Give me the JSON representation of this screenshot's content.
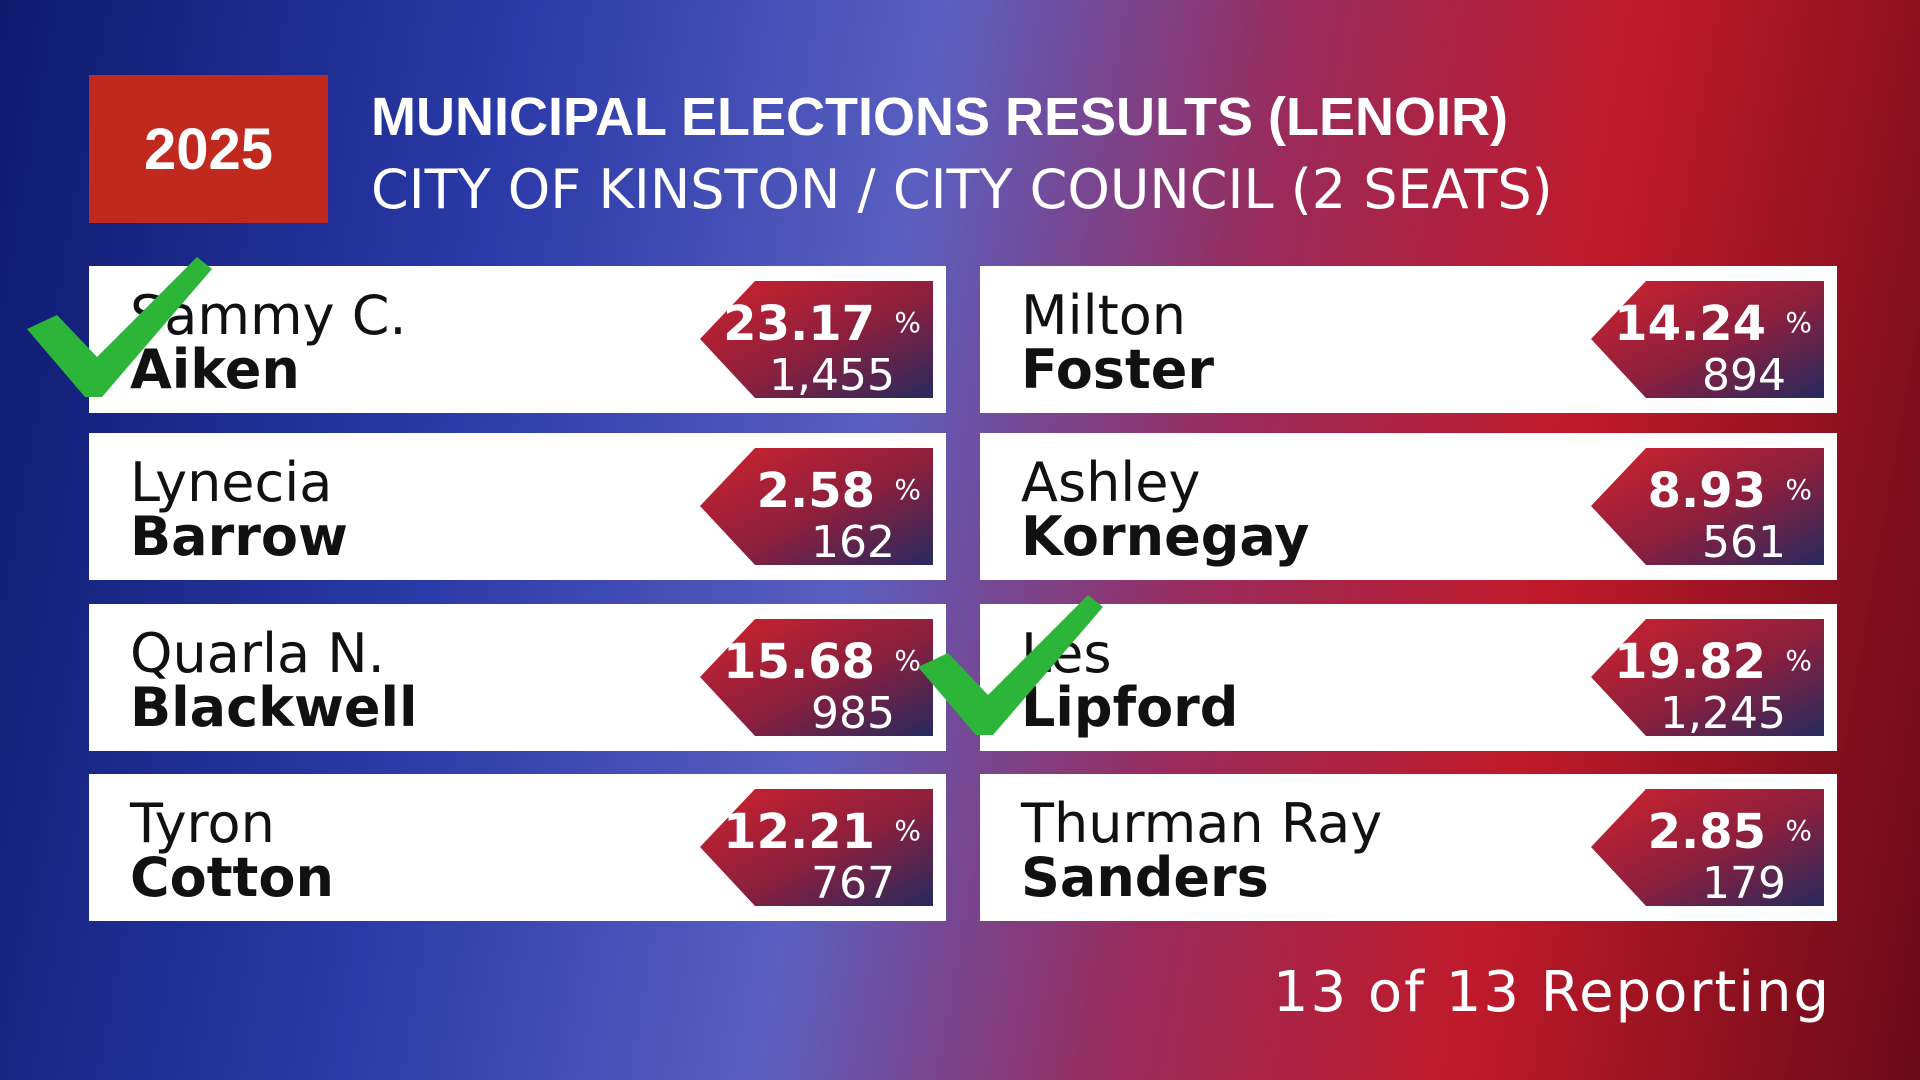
{
  "header": {
    "year": "2025",
    "title": "MUNICIPAL ELECTIONS RESULTS (LENOIR)",
    "subtitle": "CITY OF KINSTON / CITY COUNCIL (2 SEATS)"
  },
  "percent_sign": "%",
  "candidates": [
    {
      "first": "Sammy C.",
      "last": "Aiken",
      "percent": "23.17",
      "votes": "1,455",
      "winner": true
    },
    {
      "first": "Lynecia",
      "last": "Barrow",
      "percent": "2.58",
      "votes": "162",
      "winner": false
    },
    {
      "first": "Quarla N.",
      "last": "Blackwell",
      "percent": "15.68",
      "votes": "985",
      "winner": false
    },
    {
      "first": "Tyron",
      "last": "Cotton",
      "percent": "12.21",
      "votes": "767",
      "winner": false
    },
    {
      "first": "Milton",
      "last": "Foster",
      "percent": "14.24",
      "votes": "894",
      "winner": false
    },
    {
      "first": "Ashley",
      "last": "Kornegay",
      "percent": "8.93",
      "votes": "561",
      "winner": false
    },
    {
      "first": "Les",
      "last": "Lipford",
      "percent": "19.82",
      "votes": "1,245",
      "winner": true
    },
    {
      "first": "Thurman Ray",
      "last": "Sanders",
      "percent": "2.85",
      "votes": "179",
      "winner": false
    }
  ],
  "footer": "13 of 13 Reporting"
}
